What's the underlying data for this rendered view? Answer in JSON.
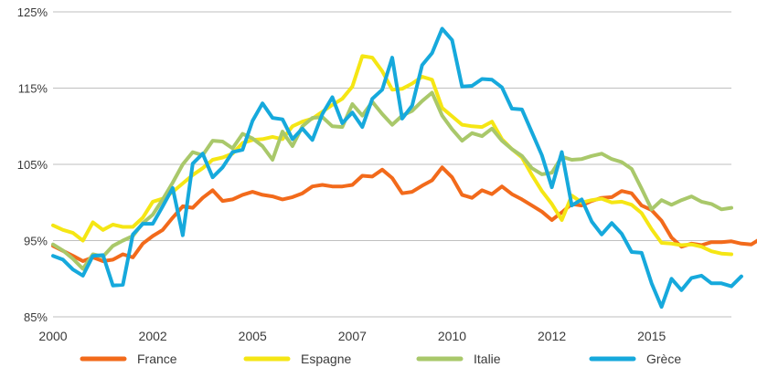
{
  "chart_data": {
    "type": "line",
    "title": "",
    "xlabel": "",
    "ylabel": "",
    "xlim": [
      2000.0,
      2017.0
    ],
    "ylim": [
      85,
      125
    ],
    "y_ticks": [
      85,
      95,
      105,
      115,
      125
    ],
    "y_tick_labels": [
      "85%",
      "95%",
      "105%",
      "115%",
      "125%"
    ],
    "x_ticks": [
      2000,
      2002.5,
      2005,
      2007.5,
      2010,
      2012.5,
      2015
    ],
    "x_tick_labels": [
      "2000",
      "2002",
      "2005",
      "2007",
      "2010",
      "2012",
      "2015"
    ],
    "grid": "horizontal",
    "legend_position": "bottom",
    "series": [
      {
        "name": "France",
        "color": "#f26a1b",
        "points": [
          [
            2000.0,
            94.3
          ],
          [
            2000.5,
            93.0
          ],
          [
            2000.75,
            92.3
          ],
          [
            2001.0,
            92.8
          ],
          [
            2001.25,
            92.3
          ],
          [
            2001.5,
            92.5
          ],
          [
            2001.75,
            93.2
          ],
          [
            2002.0,
            92.8
          ],
          [
            2002.25,
            94.6
          ],
          [
            2002.5,
            95.6
          ],
          [
            2002.75,
            96.4
          ],
          [
            2003.0,
            98.0
          ],
          [
            2003.25,
            99.5
          ],
          [
            2003.5,
            99.3
          ],
          [
            2003.75,
            100.6
          ],
          [
            2004.0,
            101.6
          ],
          [
            2004.25,
            100.2
          ],
          [
            2004.5,
            100.4
          ],
          [
            2004.75,
            101.0
          ],
          [
            2005.0,
            101.4
          ],
          [
            2005.25,
            101.0
          ],
          [
            2005.5,
            100.8
          ],
          [
            2005.75,
            100.4
          ],
          [
            2006.0,
            100.7
          ],
          [
            2006.25,
            101.2
          ],
          [
            2006.5,
            102.1
          ],
          [
            2006.75,
            102.3
          ],
          [
            2007.0,
            102.1
          ],
          [
            2007.25,
            102.1
          ],
          [
            2007.5,
            102.3
          ],
          [
            2007.75,
            103.5
          ],
          [
            2008.0,
            103.4
          ],
          [
            2008.25,
            104.3
          ],
          [
            2008.5,
            103.2
          ],
          [
            2008.75,
            101.2
          ],
          [
            2009.0,
            101.4
          ],
          [
            2009.25,
            102.2
          ],
          [
            2009.5,
            102.9
          ],
          [
            2009.75,
            104.6
          ],
          [
            2010.0,
            103.3
          ],
          [
            2010.25,
            101.0
          ],
          [
            2010.5,
            100.6
          ],
          [
            2010.75,
            101.6
          ],
          [
            2011.0,
            101.1
          ],
          [
            2011.25,
            102.1
          ],
          [
            2011.5,
            101.1
          ],
          [
            2011.75,
            100.4
          ],
          [
            2012.0,
            99.6
          ],
          [
            2012.25,
            98.8
          ],
          [
            2012.5,
            97.7
          ],
          [
            2012.75,
            98.7
          ],
          [
            2013.0,
            99.8
          ],
          [
            2013.25,
            99.6
          ],
          [
            2013.5,
            100.2
          ],
          [
            2013.75,
            100.6
          ],
          [
            2014.0,
            100.7
          ],
          [
            2014.25,
            101.5
          ],
          [
            2014.5,
            101.2
          ],
          [
            2014.75,
            99.6
          ],
          [
            2015.0,
            99.0
          ],
          [
            2015.25,
            97.6
          ],
          [
            2015.5,
            95.4
          ],
          [
            2015.75,
            94.2
          ],
          [
            2016.0,
            94.6
          ],
          [
            2016.25,
            94.4
          ],
          [
            2016.5,
            94.8
          ],
          [
            2016.75,
            94.8
          ],
          [
            2017.0,
            94.9
          ],
          [
            2017.25,
            94.6
          ],
          [
            2017.5,
            94.5
          ],
          [
            2017.75,
            95.3
          ]
        ]
      },
      {
        "name": "Espagne",
        "color": "#f5e614",
        "points": [
          [
            2000.0,
            97.0
          ],
          [
            2000.25,
            96.4
          ],
          [
            2000.5,
            96.0
          ],
          [
            2000.75,
            95.0
          ],
          [
            2001.0,
            97.4
          ],
          [
            2001.25,
            96.4
          ],
          [
            2001.5,
            97.1
          ],
          [
            2001.75,
            96.8
          ],
          [
            2002.0,
            96.8
          ],
          [
            2002.25,
            98.0
          ],
          [
            2002.5,
            100.1
          ],
          [
            2002.75,
            100.5
          ],
          [
            2003.0,
            101.4
          ],
          [
            2003.25,
            102.5
          ],
          [
            2003.5,
            103.6
          ],
          [
            2003.75,
            104.5
          ],
          [
            2004.0,
            105.6
          ],
          [
            2004.25,
            105.9
          ],
          [
            2004.5,
            106.4
          ],
          [
            2004.75,
            107.8
          ],
          [
            2005.0,
            108.2
          ],
          [
            2005.25,
            108.3
          ],
          [
            2005.5,
            108.6
          ],
          [
            2005.75,
            108.3
          ],
          [
            2006.0,
            110.0
          ],
          [
            2006.25,
            110.6
          ],
          [
            2006.5,
            111.0
          ],
          [
            2006.75,
            111.9
          ],
          [
            2007.0,
            112.8
          ],
          [
            2007.25,
            113.6
          ],
          [
            2007.5,
            115.2
          ],
          [
            2007.75,
            119.2
          ],
          [
            2008.0,
            119.0
          ],
          [
            2008.25,
            117.2
          ],
          [
            2008.5,
            114.8
          ],
          [
            2008.75,
            114.9
          ],
          [
            2009.0,
            115.6
          ],
          [
            2009.25,
            116.5
          ],
          [
            2009.5,
            116.1
          ],
          [
            2009.75,
            112.4
          ],
          [
            2010.0,
            111.3
          ],
          [
            2010.25,
            110.2
          ],
          [
            2010.5,
            110.0
          ],
          [
            2010.75,
            109.9
          ],
          [
            2011.0,
            110.6
          ],
          [
            2011.25,
            108.3
          ],
          [
            2011.5,
            107.0
          ],
          [
            2011.75,
            105.9
          ],
          [
            2012.0,
            103.6
          ],
          [
            2012.25,
            101.5
          ],
          [
            2012.5,
            99.8
          ],
          [
            2012.75,
            97.7
          ],
          [
            2013.0,
            100.9
          ],
          [
            2013.25,
            100.0
          ],
          [
            2013.5,
            100.3
          ],
          [
            2013.75,
            100.5
          ],
          [
            2014.0,
            100.0
          ],
          [
            2014.25,
            100.1
          ],
          [
            2014.5,
            99.7
          ],
          [
            2014.75,
            98.6
          ],
          [
            2015.0,
            96.5
          ],
          [
            2015.25,
            94.7
          ],
          [
            2015.5,
            94.6
          ],
          [
            2015.75,
            94.4
          ],
          [
            2016.0,
            94.5
          ],
          [
            2016.25,
            94.2
          ],
          [
            2016.5,
            93.6
          ],
          [
            2016.75,
            93.3
          ],
          [
            2017.0,
            93.2
          ]
        ]
      },
      {
        "name": "Italie",
        "color": "#a9c86a",
        "points": [
          [
            2000.0,
            94.5
          ],
          [
            2000.25,
            93.7
          ],
          [
            2000.5,
            92.6
          ],
          [
            2000.75,
            91.3
          ],
          [
            2001.0,
            93.2
          ],
          [
            2001.25,
            92.9
          ],
          [
            2001.5,
            94.3
          ],
          [
            2001.75,
            95.0
          ],
          [
            2002.0,
            95.6
          ],
          [
            2002.25,
            97.3
          ],
          [
            2002.5,
            98.4
          ],
          [
            2002.75,
            100.4
          ],
          [
            2003.0,
            102.6
          ],
          [
            2003.25,
            105.0
          ],
          [
            2003.5,
            106.6
          ],
          [
            2003.75,
            106.2
          ],
          [
            2004.0,
            108.1
          ],
          [
            2004.25,
            108.0
          ],
          [
            2004.5,
            107.1
          ],
          [
            2004.75,
            109.0
          ],
          [
            2005.0,
            108.4
          ],
          [
            2005.25,
            107.4
          ],
          [
            2005.5,
            105.6
          ],
          [
            2005.75,
            109.3
          ],
          [
            2006.0,
            107.4
          ],
          [
            2006.25,
            110.0
          ],
          [
            2006.5,
            111.1
          ],
          [
            2006.75,
            111.2
          ],
          [
            2007.0,
            110.0
          ],
          [
            2007.25,
            109.9
          ],
          [
            2007.5,
            112.9
          ],
          [
            2007.75,
            111.4
          ],
          [
            2008.0,
            113.2
          ],
          [
            2008.25,
            111.6
          ],
          [
            2008.5,
            110.2
          ],
          [
            2008.75,
            111.4
          ],
          [
            2009.0,
            112.0
          ],
          [
            2009.25,
            113.3
          ],
          [
            2009.5,
            114.4
          ],
          [
            2009.75,
            111.4
          ],
          [
            2010.0,
            109.6
          ],
          [
            2010.25,
            108.1
          ],
          [
            2010.5,
            109.1
          ],
          [
            2010.75,
            108.7
          ],
          [
            2011.0,
            109.7
          ],
          [
            2011.25,
            108.1
          ],
          [
            2011.5,
            107.0
          ],
          [
            2011.75,
            106.1
          ],
          [
            2012.0,
            104.5
          ],
          [
            2012.25,
            103.7
          ],
          [
            2012.5,
            103.9
          ],
          [
            2012.75,
            106.0
          ],
          [
            2013.0,
            105.6
          ],
          [
            2013.25,
            105.7
          ],
          [
            2013.5,
            106.1
          ],
          [
            2013.75,
            106.4
          ],
          [
            2014.0,
            105.7
          ],
          [
            2014.25,
            105.3
          ],
          [
            2014.5,
            104.4
          ],
          [
            2014.75,
            101.8
          ],
          [
            2015.0,
            99.1
          ],
          [
            2015.25,
            100.3
          ],
          [
            2015.5,
            99.7
          ],
          [
            2015.75,
            100.3
          ],
          [
            2016.0,
            100.8
          ],
          [
            2016.25,
            100.1
          ],
          [
            2016.5,
            99.8
          ],
          [
            2016.75,
            99.1
          ],
          [
            2017.0,
            99.3
          ]
        ]
      },
      {
        "name": "Grèce",
        "color": "#16a9dc",
        "points": [
          [
            2000.0,
            93.0
          ],
          [
            2000.25,
            92.5
          ],
          [
            2000.5,
            91.2
          ],
          [
            2000.75,
            90.4
          ],
          [
            2001.0,
            93.0
          ],
          [
            2001.25,
            93.1
          ],
          [
            2001.5,
            89.1
          ],
          [
            2001.75,
            89.2
          ],
          [
            2002.0,
            95.8
          ],
          [
            2002.25,
            97.2
          ],
          [
            2002.5,
            97.2
          ],
          [
            2002.75,
            99.5
          ],
          [
            2003.0,
            101.9
          ],
          [
            2003.25,
            95.7
          ],
          [
            2003.5,
            105.1
          ],
          [
            2003.75,
            106.4
          ],
          [
            2004.0,
            103.3
          ],
          [
            2004.25,
            104.6
          ],
          [
            2004.5,
            106.6
          ],
          [
            2004.75,
            106.9
          ],
          [
            2005.0,
            110.7
          ],
          [
            2005.25,
            113.0
          ],
          [
            2005.5,
            111.1
          ],
          [
            2005.75,
            110.9
          ],
          [
            2006.0,
            108.3
          ],
          [
            2006.25,
            109.7
          ],
          [
            2006.5,
            108.2
          ],
          [
            2006.75,
            111.6
          ],
          [
            2007.0,
            113.8
          ],
          [
            2007.25,
            110.4
          ],
          [
            2007.5,
            111.8
          ],
          [
            2007.75,
            109.9
          ],
          [
            2008.0,
            113.6
          ],
          [
            2008.25,
            114.8
          ],
          [
            2008.5,
            119.0
          ],
          [
            2008.75,
            111.0
          ],
          [
            2009.0,
            112.7
          ],
          [
            2009.25,
            118.0
          ],
          [
            2009.5,
            119.6
          ],
          [
            2009.75,
            122.8
          ],
          [
            2010.0,
            121.3
          ],
          [
            2010.25,
            115.2
          ],
          [
            2010.5,
            115.3
          ],
          [
            2010.75,
            116.2
          ],
          [
            2011.0,
            116.1
          ],
          [
            2011.25,
            115.1
          ],
          [
            2011.5,
            112.3
          ],
          [
            2011.75,
            112.2
          ],
          [
            2012.0,
            109.2
          ],
          [
            2012.25,
            106.2
          ],
          [
            2012.5,
            102.0
          ],
          [
            2012.75,
            106.6
          ],
          [
            2013.0,
            99.6
          ],
          [
            2013.25,
            100.4
          ],
          [
            2013.5,
            97.5
          ],
          [
            2013.75,
            95.8
          ],
          [
            2014.0,
            97.3
          ],
          [
            2014.25,
            95.9
          ],
          [
            2014.5,
            93.5
          ],
          [
            2014.75,
            93.4
          ],
          [
            2015.0,
            89.4
          ],
          [
            2015.25,
            86.3
          ],
          [
            2015.5,
            90.0
          ],
          [
            2015.75,
            88.5
          ],
          [
            2016.0,
            90.1
          ],
          [
            2016.25,
            90.4
          ],
          [
            2016.5,
            89.4
          ],
          [
            2016.75,
            89.4
          ],
          [
            2017.0,
            89.0
          ],
          [
            2017.25,
            90.3
          ]
        ]
      }
    ]
  }
}
